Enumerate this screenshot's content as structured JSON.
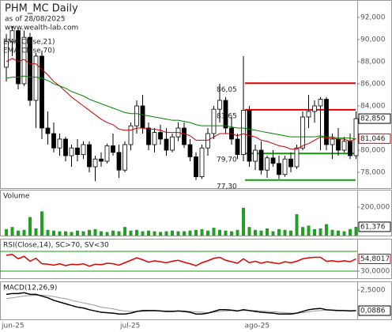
{
  "chart_data": [
    {
      "type": "candlestick",
      "title": "PHM_MC Daily",
      "subtitle": "as of 28/08/2025",
      "source": "www.wealth-lab.com",
      "categories": [
        "jun-25",
        null,
        null,
        null,
        null,
        null,
        null,
        null,
        null,
        null,
        null,
        null,
        null,
        null,
        null,
        null,
        null,
        null,
        null,
        null,
        "jul-25",
        null,
        null,
        null,
        null,
        null,
        null,
        null,
        null,
        null,
        null,
        null,
        null,
        null,
        null,
        null,
        null,
        null,
        null,
        null,
        null,
        "ago-25",
        null,
        null,
        null,
        null,
        null,
        null,
        null,
        null,
        null,
        null,
        null,
        null,
        null,
        null,
        null,
        null,
        null,
        null
      ],
      "open": [
        87.5,
        89.8,
        90.8,
        86.0,
        90.2,
        84.5,
        88.5,
        82.0,
        81.5,
        80.2,
        81.0,
        79.5,
        80.2,
        79.6,
        80.5,
        78.5,
        79.2,
        79.0,
        80.4,
        79.8,
        78.2,
        80.5,
        82.2,
        84.0,
        82.0,
        80.5,
        81.6,
        81.0,
        80.0,
        81.2,
        82.0,
        80.5,
        79.4,
        77.6,
        80.2,
        81.5,
        83.7,
        84.5,
        82.0,
        81.0,
        79.6,
        83.6,
        79.0,
        80.0,
        78.2,
        79.3,
        78.8,
        77.8,
        79.2,
        78.5,
        80.2,
        83.0,
        83.5,
        84.0,
        84.6,
        80.5,
        81.0,
        80.0,
        80.8,
        79.5
      ],
      "high": [
        90.5,
        91.2,
        91.0,
        90.8,
        90.6,
        88.8,
        89.0,
        83.5,
        82.5,
        81.5,
        81.2,
        80.5,
        81.0,
        80.8,
        80.8,
        79.5,
        79.8,
        80.6,
        81.5,
        80.5,
        80.8,
        82.5,
        84.5,
        85.0,
        82.5,
        82.0,
        82.3,
        82.0,
        81.5,
        82.5,
        82.5,
        81.0,
        79.8,
        80.5,
        82.0,
        84.0,
        86.0,
        84.8,
        83.0,
        81.5,
        88.5,
        84.0,
        80.5,
        80.8,
        79.5,
        80.0,
        79.5,
        79.5,
        79.8,
        80.5,
        83.5,
        85.0,
        84.5,
        84.8,
        84.8,
        81.5,
        82.0,
        81.2,
        81.5,
        83.5
      ],
      "low": [
        86.2,
        88.5,
        85.5,
        85.8,
        84.0,
        82.0,
        81.0,
        80.5,
        79.8,
        79.5,
        79.0,
        78.5,
        79.0,
        79.2,
        78.0,
        77.2,
        78.5,
        78.8,
        79.5,
        77.5,
        78.0,
        80.0,
        81.5,
        81.5,
        80.0,
        79.8,
        80.5,
        79.5,
        79.8,
        80.8,
        80.2,
        79.0,
        77.3,
        77.4,
        79.5,
        81.0,
        82.5,
        81.5,
        80.5,
        79.2,
        79.0,
        78.5,
        78.2,
        77.8,
        77.5,
        78.5,
        77.4,
        77.6,
        78.0,
        78.3,
        80.0,
        82.0,
        82.5,
        80.0,
        80.0,
        79.2,
        79.5,
        79.8,
        79.2,
        79.2
      ],
      "close": [
        89.8,
        90.8,
        86.0,
        90.2,
        84.5,
        88.5,
        82.0,
        81.5,
        80.2,
        81.0,
        79.5,
        80.2,
        79.6,
        80.5,
        78.5,
        79.2,
        79.0,
        80.4,
        79.8,
        78.2,
        80.5,
        82.2,
        84.0,
        82.0,
        80.5,
        81.6,
        81.0,
        80.0,
        81.2,
        82.0,
        80.5,
        79.4,
        77.6,
        80.2,
        81.5,
        83.7,
        84.5,
        82.0,
        81.0,
        79.6,
        83.6,
        79.0,
        80.0,
        78.2,
        79.3,
        78.8,
        77.8,
        79.2,
        78.5,
        80.2,
        83.0,
        83.5,
        84.0,
        84.6,
        80.5,
        81.0,
        80.0,
        80.8,
        79.5,
        82.85
      ],
      "last_label": "82,850",
      "up_color": "#ffffff",
      "down_color": "#000000",
      "overlays": [
        {
          "name": "EMA(Close,21)",
          "color": "#cc0000",
          "last_label": "81,046",
          "values": [
            88.0,
            88.3,
            88.0,
            88.2,
            87.8,
            87.8,
            87.3,
            86.8,
            86.2,
            85.8,
            85.3,
            84.8,
            84.4,
            84.0,
            83.6,
            83.2,
            82.8,
            82.5,
            82.3,
            81.9,
            81.8,
            81.8,
            82.0,
            82.0,
            81.9,
            81.9,
            81.8,
            81.6,
            81.6,
            81.6,
            81.5,
            81.3,
            80.9,
            80.9,
            80.9,
            81.2,
            81.5,
            81.5,
            81.5,
            81.3,
            81.5,
            81.3,
            81.2,
            80.9,
            80.8,
            80.6,
            80.4,
            80.3,
            80.1,
            80.1,
            80.4,
            80.6,
            80.9,
            81.2,
            81.1,
            81.1,
            81.0,
            81.0,
            80.8,
            81.046
          ]
        },
        {
          "name": "EMA(Close,70)",
          "color": "#008000",
          "values": [
            86.5,
            86.6,
            86.6,
            86.7,
            86.6,
            86.6,
            86.5,
            86.3,
            86.0,
            85.8,
            85.6,
            85.3,
            85.1,
            84.9,
            84.6,
            84.4,
            84.2,
            84.0,
            83.8,
            83.6,
            83.4,
            83.3,
            83.3,
            83.2,
            83.1,
            83.0,
            82.9,
            82.8,
            82.7,
            82.7,
            82.6,
            82.5,
            82.3,
            82.2,
            82.2,
            82.2,
            82.2,
            82.2,
            82.1,
            82.0,
            82.0,
            81.9,
            81.8,
            81.7,
            81.6,
            81.5,
            81.4,
            81.3,
            81.2,
            81.2,
            81.2,
            81.2,
            81.2,
            81.3,
            81.2,
            81.2,
            81.1,
            81.1,
            81.1,
            81.0
          ]
        }
      ],
      "levels": [
        {
          "value": 86.05,
          "label": "86,05",
          "color": "#e00000"
        },
        {
          "value": 83.65,
          "label": "83,65",
          "color": "#e00000"
        },
        {
          "value": 79.7,
          "label": "79,70",
          "color": "#10a010"
        },
        {
          "value": 77.3,
          "label": "77,30",
          "color": "#10a010"
        }
      ],
      "ylim": [
        76.57,
        93.57
      ],
      "yticks": [
        {
          "value": 78,
          "label": "78,000"
        },
        {
          "value": 80,
          "label": "80,000"
        },
        {
          "value": 84,
          "label": "84,000"
        },
        {
          "value": 86,
          "label": "86,000"
        },
        {
          "value": 88,
          "label": "88,000"
        },
        {
          "value": 90,
          "label": "90,000"
        },
        {
          "value": 92,
          "label": "92,000"
        }
      ]
    },
    {
      "type": "bar",
      "title": "Volume",
      "color": "#22a022",
      "last_label": "61,376",
      "values": [
        45000,
        60000,
        35000,
        40000,
        130000,
        50000,
        170000,
        40000,
        35000,
        30000,
        30000,
        25000,
        35000,
        30000,
        40000,
        45000,
        30000,
        25000,
        35000,
        30000,
        60000,
        35000,
        40000,
        30000,
        35000,
        30000,
        25000,
        30000,
        35000,
        30000,
        30000,
        35000,
        40000,
        45000,
        35000,
        55000,
        40000,
        35000,
        30000,
        40000,
        195000,
        60000,
        40000,
        35000,
        50000,
        30000,
        45000,
        40000,
        35000,
        150000,
        60000,
        70000,
        45000,
        50000,
        80000,
        40000,
        35000,
        30000,
        45000,
        61376
      ],
      "ylim": [
        0,
        322000
      ],
      "yticks": [
        {
          "value": 200000,
          "label": "200,000"
        }
      ]
    },
    {
      "type": "line",
      "title": "RSI(Close,14), SC>70, SV<30",
      "color": "#dd0000",
      "last_label": "54,8017",
      "values": [
        62,
        64,
        55,
        60,
        50,
        56,
        45,
        44,
        42,
        45,
        41,
        44,
        43,
        45,
        40,
        44,
        43,
        46,
        45,
        42,
        47,
        52,
        57,
        53,
        48,
        51,
        49,
        47,
        50,
        52,
        48,
        45,
        41,
        47,
        51,
        56,
        58,
        52,
        49,
        46,
        55,
        47,
        50,
        46,
        49,
        47,
        45,
        49,
        47,
        50,
        55,
        57,
        58,
        58,
        50,
        51,
        49,
        51,
        49,
        54.8017
      ],
      "reference_lines": [
        70,
        30
      ],
      "reference_color": "#10a010",
      "ylim": [
        15.6,
        95.6
      ],
      "yticks": [
        {
          "value": 30,
          "label": "30,0000"
        }
      ]
    },
    {
      "type": "line",
      "title": "MACD(12,26,9)",
      "color": "#000000",
      "last_label": "0,0886",
      "values": [
        2.0,
        2.1,
        2.1,
        2.2,
        2.0,
        2.0,
        1.8,
        1.6,
        1.3,
        1.1,
        0.9,
        0.7,
        0.5,
        0.4,
        0.2,
        0.05,
        -0.1,
        -0.15,
        -0.2,
        -0.3,
        -0.3,
        -0.2,
        0.0,
        0.1,
        0.1,
        0.1,
        0.05,
        0.0,
        0.0,
        0.05,
        0.0,
        -0.1,
        -0.3,
        -0.3,
        -0.2,
        0.0,
        0.2,
        0.2,
        0.15,
        0.05,
        0.2,
        0.1,
        0.0,
        -0.1,
        -0.15,
        -0.2,
        -0.3,
        -0.3,
        -0.3,
        -0.2,
        0.0,
        0.2,
        0.3,
        0.35,
        0.2,
        0.15,
        0.1,
        0.1,
        0.05,
        0.0886
      ],
      "signal": {
        "color": "#999999",
        "values": [
          1.5,
          1.6,
          1.7,
          1.8,
          1.85,
          1.9,
          1.9,
          1.85,
          1.75,
          1.6,
          1.5,
          1.3,
          1.15,
          1.0,
          0.85,
          0.7,
          0.5,
          0.4,
          0.3,
          0.15,
          0.05,
          0.0,
          0.0,
          0.0,
          0.05,
          0.05,
          0.05,
          0.05,
          0.05,
          0.05,
          0.05,
          0.0,
          -0.05,
          -0.1,
          -0.15,
          -0.1,
          0.0,
          0.05,
          0.1,
          0.1,
          0.1,
          0.1,
          0.1,
          0.05,
          0.0,
          -0.05,
          -0.1,
          -0.15,
          -0.2,
          -0.2,
          -0.15,
          -0.05,
          0.05,
          0.1,
          0.15,
          0.15,
          0.15,
          0.1,
          0.1,
          0.1
        ]
      },
      "ylim": [
        -0.93,
        3.52
      ],
      "yticks": [
        {
          "value": 2.5,
          "label": "2,5000"
        }
      ]
    }
  ]
}
